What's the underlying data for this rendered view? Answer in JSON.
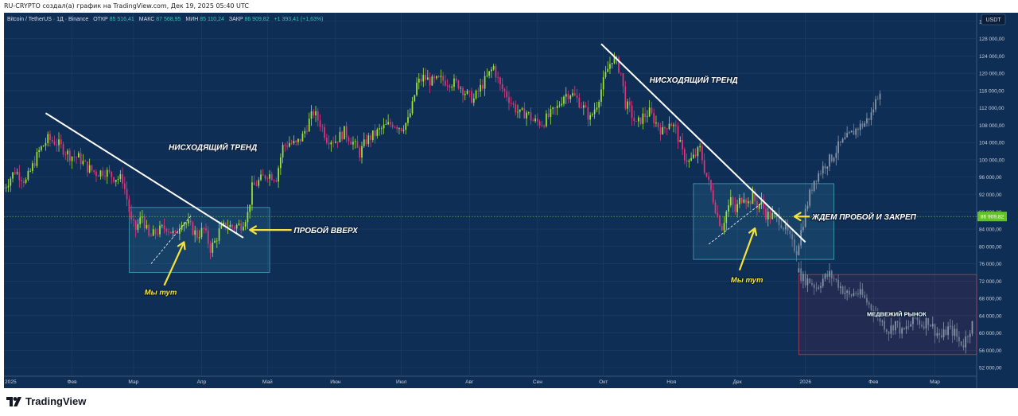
{
  "header": {
    "credit": "RU-CRYPTO создал(а) график на TradingView.com, Дек 19, 2025 05:40 UTC"
  },
  "legend": {
    "symbol": "Bitcoin / TetherUS · 1Д · Binance",
    "open_label": "ОТКР",
    "open_value": "85 516,41",
    "high_label": "МАКС",
    "high_value": "87 568,95",
    "low_label": "МИН",
    "low_value": "85 110,24",
    "close_label": "ЗАКР",
    "close_value": "86 909,82",
    "change": "+1 393,41 (+1,63%)"
  },
  "footer": {
    "brand": "TradingView"
  },
  "colors": {
    "background": "#0f2e55",
    "up": "#9ee53a",
    "down": "#e0357a",
    "projection": "#8c99ab",
    "trendline": "#ffffff",
    "arrow": "#f5e23b",
    "box_border": "#3fa3b8",
    "bear_box_border": "#b0415f",
    "price_tag": "#63c61e",
    "text_white": "#ffffff"
  },
  "chart_data": {
    "type": "candlestick",
    "title": "Bitcoin / TetherUS · 1Д · Binance",
    "ylim": [
      50000,
      134000
    ],
    "y_ticks": [
      52000,
      56000,
      60000,
      64000,
      68000,
      72000,
      76000,
      80000,
      84000,
      88000,
      92000,
      96000,
      100000,
      104000,
      108000,
      112000,
      116000,
      120000,
      124000,
      128000,
      132000
    ],
    "y_tick_labels": [
      "52 000,00",
      "56 000,00",
      "60 000,00",
      "64 000,00",
      "68 000,00",
      "72 000,00",
      "76 000,00",
      "80 000,00",
      "84 000,00",
      "88 000,00",
      "92 000,00",
      "96 000,00",
      "100 000,00",
      "104 000,00",
      "108 000,00",
      "112 000,00",
      "116 000,00",
      "120 000,00",
      "124 000,00",
      "128 000,00",
      "132 000,00"
    ],
    "x_labels": [
      {
        "label": "2025",
        "day": 0
      },
      {
        "label": "Фев",
        "day": 31
      },
      {
        "label": "Мар",
        "day": 59
      },
      {
        "label": "Апр",
        "day": 90
      },
      {
        "label": "Май",
        "day": 120
      },
      {
        "label": "Июн",
        "day": 151
      },
      {
        "label": "Июл",
        "day": 181
      },
      {
        "label": "Авг",
        "day": 212
      },
      {
        "label": "Сен",
        "day": 243
      },
      {
        "label": "Окт",
        "day": 273
      },
      {
        "label": "Ноя",
        "day": 304
      },
      {
        "label": "Дек",
        "day": 334
      },
      {
        "label": "2026",
        "day": 365
      },
      {
        "label": "Фев",
        "day": 396
      },
      {
        "label": "Мар",
        "day": 424
      }
    ],
    "x_range_days": [
      0,
      443
    ],
    "currency_label": "USDT",
    "last_price": 86909.82,
    "last_price_label": "86 909,82",
    "price_path": [
      [
        0,
        93500
      ],
      [
        5,
        97500
      ],
      [
        10,
        95000
      ],
      [
        16,
        102000
      ],
      [
        20,
        104800
      ],
      [
        24,
        104000
      ],
      [
        27,
        102500
      ],
      [
        30,
        101000
      ],
      [
        34,
        100500
      ],
      [
        38,
        98200
      ],
      [
        42,
        97000
      ],
      [
        46,
        97400
      ],
      [
        50,
        96000
      ],
      [
        54,
        95500
      ],
      [
        56,
        91000
      ],
      [
        58,
        85500
      ],
      [
        60,
        84000
      ],
      [
        63,
        87000
      ],
      [
        66,
        82000
      ],
      [
        70,
        83500
      ],
      [
        74,
        84500
      ],
      [
        78,
        82500
      ],
      [
        81,
        86000
      ],
      [
        84,
        85000
      ],
      [
        88,
        82500
      ],
      [
        91,
        84000
      ],
      [
        94,
        79500
      ],
      [
        96,
        81000
      ],
      [
        98,
        83500
      ],
      [
        101,
        85000
      ],
      [
        104,
        84500
      ],
      [
        108,
        85000
      ],
      [
        111,
        87500
      ],
      [
        113,
        93500
      ],
      [
        116,
        95000
      ],
      [
        120,
        96800
      ],
      [
        124,
        96000
      ],
      [
        127,
        103000
      ],
      [
        130,
        104000
      ],
      [
        133,
        103500
      ],
      [
        136,
        105500
      ],
      [
        139,
        109000
      ],
      [
        141,
        111000
      ],
      [
        144,
        108500
      ],
      [
        147,
        105000
      ],
      [
        151,
        104500
      ],
      [
        155,
        106500
      ],
      [
        159,
        104000
      ],
      [
        162,
        101500
      ],
      [
        165,
        104500
      ],
      [
        169,
        106000
      ],
      [
        173,
        107500
      ],
      [
        177,
        108500
      ],
      [
        181,
        107500
      ],
      [
        184,
        109000
      ],
      [
        186,
        112500
      ],
      [
        188,
        117500
      ],
      [
        191,
        119000
      ],
      [
        195,
        118000
      ],
      [
        199,
        118500
      ],
      [
        203,
        118000
      ],
      [
        207,
        117500
      ],
      [
        211,
        115000
      ],
      [
        214,
        114000
      ],
      [
        218,
        117500
      ],
      [
        220,
        119000
      ],
      [
        223,
        121500
      ],
      [
        226,
        117000
      ],
      [
        229,
        115000
      ],
      [
        232,
        112500
      ],
      [
        235,
        110500
      ],
      [
        238,
        111000
      ],
      [
        241,
        109000
      ],
      [
        245,
        108500
      ],
      [
        248,
        110000
      ],
      [
        252,
        112000
      ],
      [
        255,
        115000
      ],
      [
        258,
        115500
      ],
      [
        261,
        114000
      ],
      [
        264,
        112000
      ],
      [
        267,
        109500
      ],
      [
        270,
        113000
      ],
      [
        273,
        118000
      ],
      [
        275,
        121000
      ],
      [
        277,
        123500
      ],
      [
        279,
        122500
      ],
      [
        281,
        120000
      ],
      [
        283,
        113000
      ],
      [
        285,
        111500
      ],
      [
        288,
        108000
      ],
      [
        291,
        110000
      ],
      [
        294,
        111000
      ],
      [
        297,
        108500
      ],
      [
        300,
        106500
      ],
      [
        303,
        109000
      ],
      [
        306,
        107000
      ],
      [
        309,
        101500
      ],
      [
        312,
        99500
      ],
      [
        314,
        100500
      ],
      [
        317,
        102500
      ],
      [
        319,
        98000
      ],
      [
        321,
        94500
      ],
      [
        323,
        91000
      ],
      [
        325,
        87000
      ],
      [
        327,
        84500
      ],
      [
        329,
        88000
      ],
      [
        331,
        90500
      ],
      [
        333,
        88000
      ],
      [
        335,
        90500
      ],
      [
        337,
        92000
      ],
      [
        339,
        90000
      ],
      [
        341,
        91500
      ],
      [
        343,
        89500
      ],
      [
        345,
        90000
      ],
      [
        347,
        87500
      ],
      [
        349,
        87000
      ],
      [
        351,
        86910
      ]
    ],
    "projection_path": [
      [
        352,
        86900
      ],
      [
        354,
        85500
      ],
      [
        357,
        83000
      ],
      [
        359,
        80500
      ],
      [
        361,
        79000
      ],
      [
        363,
        83500
      ],
      [
        365,
        88000
      ],
      [
        367,
        92000
      ],
      [
        369,
        95500
      ],
      [
        372,
        97500
      ],
      [
        374,
        99000
      ],
      [
        377,
        100500
      ],
      [
        380,
        103000
      ],
      [
        383,
        104500
      ],
      [
        386,
        106000
      ],
      [
        389,
        107500
      ],
      [
        392,
        108500
      ],
      [
        395,
        110500
      ],
      [
        397,
        113500
      ],
      [
        399,
        116500
      ]
    ],
    "bear_projection_path": [
      [
        360,
        79500
      ],
      [
        362,
        74000
      ],
      [
        364,
        72500
      ],
      [
        367,
        72000
      ],
      [
        370,
        70500
      ],
      [
        373,
        72500
      ],
      [
        376,
        73500
      ],
      [
        379,
        72000
      ],
      [
        382,
        70000
      ],
      [
        385,
        68500
      ],
      [
        388,
        69500
      ],
      [
        391,
        68500
      ],
      [
        394,
        66500
      ],
      [
        397,
        64500
      ],
      [
        400,
        62500
      ],
      [
        403,
        60500
      ],
      [
        406,
        62500
      ],
      [
        409,
        60000
      ],
      [
        412,
        61500
      ],
      [
        415,
        63500
      ],
      [
        418,
        62000
      ],
      [
        421,
        63000
      ],
      [
        424,
        60500
      ],
      [
        427,
        59000
      ],
      [
        430,
        61000
      ],
      [
        433,
        60000
      ],
      [
        435,
        58000
      ],
      [
        437,
        57500
      ],
      [
        439,
        60000
      ],
      [
        441,
        62000
      ]
    ],
    "annotations": [
      {
        "text": "НИСХОДЯЩИЙ ТРЕНД",
        "day": 75,
        "price": 103000
      },
      {
        "text": "ПРОБОЙ ВВЕРХ",
        "day": 132,
        "price": 83800
      },
      {
        "text": "Мы тут",
        "day": 64,
        "price": 69600
      },
      {
        "text": "НИСХОДЯЩИЙ ТРЕНД",
        "day": 294,
        "price": 118600
      },
      {
        "text": "ЖДЕМ ПРОБОЙ И ЗАКРЕП",
        "day": 368,
        "price": 86900
      },
      {
        "text": "Мы тут",
        "day": 331,
        "price": 72400
      },
      {
        "text": "МЕДВЕЖИЙ РЫНОК",
        "day": 393,
        "price": 64600
      }
    ],
    "trendlines": [
      {
        "from": [
          19,
          110800
        ],
        "to": [
          109,
          82000
        ]
      },
      {
        "from": [
          272,
          126800
        ],
        "to": [
          365,
          81000
        ]
      }
    ],
    "support_lines": [
      {
        "from": [
          67,
          76000
        ],
        "to": [
          85,
          87000
        ]
      },
      {
        "from": [
          321,
          80500
        ],
        "to": [
          345,
          90000
        ]
      }
    ],
    "boxes": [
      {
        "from": [
          57,
          89000
        ],
        "to": [
          121,
          74000
        ],
        "style": "cyan"
      },
      {
        "from": [
          314,
          94500
        ],
        "to": [
          378,
          77000
        ],
        "style": "cyan"
      },
      {
        "from": [
          362,
          73500
        ],
        "to": [
          443,
          55000
        ],
        "style": "red"
      }
    ],
    "arrows": [
      {
        "from": [
          82,
          80500
        ],
        "to": [
          92,
          80500
        ],
        "type": "left-to-right-label",
        "tip": [
          112,
          83800
        ],
        "tail": [
          131,
          83800
        ]
      },
      {
        "from": [
          73,
          71000
        ],
        "to": [
          91,
          80000
        ]
      },
      {
        "from": [
          112,
          83800
        ],
        "to": [
          131,
          83800
        ]
      },
      {
        "from": [
          336,
          74500
        ],
        "to": [
          346,
          84300
        ]
      },
      {
        "from": [
          366,
          86900
        ],
        "to": [
          367,
          86900
        ],
        "tail": [
          366,
          86900
        ],
        "tip": [
          365,
          86900
        ]
      }
    ]
  }
}
